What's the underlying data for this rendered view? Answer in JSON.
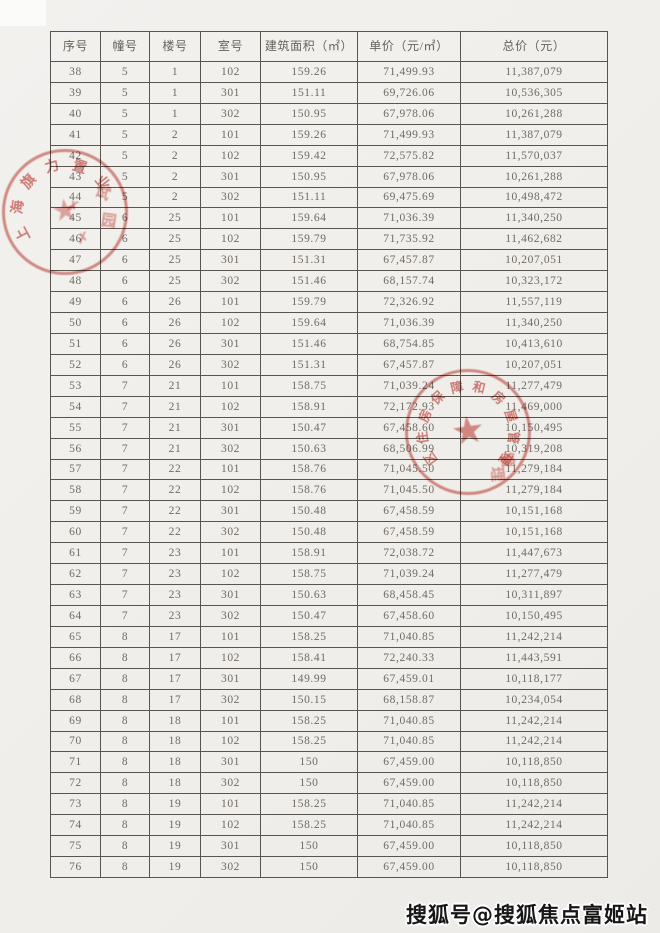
{
  "table": {
    "columns": [
      "序号",
      "幢号",
      "楼号",
      "室号",
      "建筑面积（㎡）",
      "单价（元/㎡）",
      "总价（元）"
    ],
    "rows": [
      [
        "38",
        "5",
        "1",
        "102",
        "159.26",
        "71,499.93",
        "11,387,079"
      ],
      [
        "39",
        "5",
        "1",
        "301",
        "151.11",
        "69,726.06",
        "10,536,305"
      ],
      [
        "40",
        "5",
        "1",
        "302",
        "150.95",
        "67,978.06",
        "10,261,288"
      ],
      [
        "41",
        "5",
        "2",
        "101",
        "159.26",
        "71,499.93",
        "11,387,079"
      ],
      [
        "42",
        "5",
        "2",
        "102",
        "159.42",
        "72,575.82",
        "11,570,037"
      ],
      [
        "43",
        "5",
        "2",
        "301",
        "150.95",
        "67,978.06",
        "10,261,288"
      ],
      [
        "44",
        "5",
        "2",
        "302",
        "151.11",
        "69,475.69",
        "10,498,472"
      ],
      [
        "45",
        "6",
        "25",
        "101",
        "159.64",
        "71,036.39",
        "11,340,250"
      ],
      [
        "46",
        "6",
        "25",
        "102",
        "159.79",
        "71,735.92",
        "11,462,682"
      ],
      [
        "47",
        "6",
        "25",
        "301",
        "151.31",
        "67,457.87",
        "10,207,051"
      ],
      [
        "48",
        "6",
        "25",
        "302",
        "151.46",
        "68,157.74",
        "10,323,172"
      ],
      [
        "49",
        "6",
        "26",
        "101",
        "159.79",
        "72,326.92",
        "11,557,119"
      ],
      [
        "50",
        "6",
        "26",
        "102",
        "159.64",
        "71,036.39",
        "11,340,250"
      ],
      [
        "51",
        "6",
        "26",
        "301",
        "151.46",
        "68,754.85",
        "10,413,610"
      ],
      [
        "52",
        "6",
        "26",
        "302",
        "151.31",
        "67,457.87",
        "10,207,051"
      ],
      [
        "53",
        "7",
        "21",
        "101",
        "158.75",
        "71,039.24",
        "11,277,479"
      ],
      [
        "54",
        "7",
        "21",
        "102",
        "158.91",
        "72,172.93",
        "11,469,000"
      ],
      [
        "55",
        "7",
        "21",
        "301",
        "150.47",
        "67,458.60",
        "10,150,495"
      ],
      [
        "56",
        "7",
        "21",
        "302",
        "150.63",
        "68,506.99",
        "10,319,208"
      ],
      [
        "57",
        "7",
        "22",
        "101",
        "158.76",
        "71,045.50",
        "11,279,184"
      ],
      [
        "58",
        "7",
        "22",
        "102",
        "158.76",
        "71,045.50",
        "11,279,184"
      ],
      [
        "59",
        "7",
        "22",
        "301",
        "150.48",
        "67,458.59",
        "10,151,168"
      ],
      [
        "60",
        "7",
        "22",
        "302",
        "150.48",
        "67,458.59",
        "10,151,168"
      ],
      [
        "61",
        "7",
        "23",
        "101",
        "158.91",
        "72,038.72",
        "11,447,673"
      ],
      [
        "62",
        "7",
        "23",
        "102",
        "158.75",
        "71,039.24",
        "11,277,479"
      ],
      [
        "63",
        "7",
        "23",
        "301",
        "150.63",
        "68,458.45",
        "10,311,897"
      ],
      [
        "64",
        "7",
        "23",
        "302",
        "150.47",
        "67,458.60",
        "10,150,495"
      ],
      [
        "65",
        "8",
        "17",
        "101",
        "158.25",
        "71,040.85",
        "11,242,214"
      ],
      [
        "66",
        "8",
        "17",
        "102",
        "158.41",
        "72,240.33",
        "11,443,591"
      ],
      [
        "67",
        "8",
        "17",
        "301",
        "149.99",
        "67,459.01",
        "10,118,177"
      ],
      [
        "68",
        "8",
        "17",
        "302",
        "150.15",
        "68,158.87",
        "10,234,054"
      ],
      [
        "69",
        "8",
        "18",
        "101",
        "158.25",
        "71,040.85",
        "11,242,214"
      ],
      [
        "70",
        "8",
        "18",
        "102",
        "158.25",
        "71,040.85",
        "11,242,214"
      ],
      [
        "71",
        "8",
        "18",
        "301",
        "150",
        "67,459.00",
        "10,118,850"
      ],
      [
        "72",
        "8",
        "18",
        "302",
        "150",
        "67,459.00",
        "10,118,850"
      ],
      [
        "73",
        "8",
        "19",
        "101",
        "158.25",
        "71,040.85",
        "11,242,214"
      ],
      [
        "74",
        "8",
        "19",
        "102",
        "158.25",
        "71,040.85",
        "11,242,214"
      ],
      [
        "75",
        "8",
        "19",
        "301",
        "150",
        "67,459.00",
        "10,118,850"
      ],
      [
        "76",
        "8",
        "19",
        "302",
        "150",
        "67,459.00",
        "10,118,850"
      ]
    ]
  },
  "stamps": [
    {
      "id": "company-seal",
      "arc_text": "上海旗力置业",
      "star": "★",
      "marks": [
        "✗",
        "✗",
        "试",
        "园"
      ],
      "color": "#c7493f"
    },
    {
      "id": "housing-authority-seal",
      "arc_text": "区住房保障和房屋管理",
      "star": "★",
      "marks": [
        "管",
        "理"
      ],
      "color": "#c7493f"
    }
  ],
  "watermark": {
    "text": "搜狐号@搜狐焦点富姬站"
  }
}
